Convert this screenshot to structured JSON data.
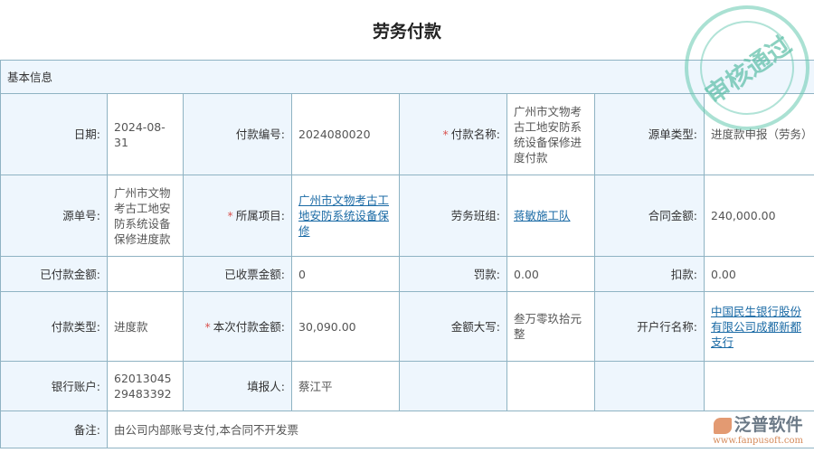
{
  "title": "劳务付款",
  "section": "基本信息",
  "stamp": "审核通过",
  "logo": {
    "name": "泛普软件",
    "url": "www.fanpusoft.com"
  },
  "fields": {
    "date": {
      "label": "日期:",
      "value": "2024-08-31"
    },
    "pay_no": {
      "label": "付款编号:",
      "value": "2024080020"
    },
    "pay_name": {
      "label": "付款名称:",
      "value": "广州市文物考古工地安防系统设备保修进度付款"
    },
    "src_type": {
      "label": "源单类型:",
      "value": "进度款申报（劳务）"
    },
    "src_no": {
      "label": "源单号:",
      "value": "广州市文物考古工地安防系统设备保修进度款"
    },
    "project": {
      "label": "所属项目:",
      "value": "广州市文物考古工地安防系统设备保修"
    },
    "team": {
      "label": "劳务班组:",
      "value": "蒋敏施工队"
    },
    "contract_amt": {
      "label": "合同金额:",
      "value": "240,000.00"
    },
    "paid_amt": {
      "label": "已付款金额:",
      "value": ""
    },
    "invoiced_amt": {
      "label": "已收票金额:",
      "value": "0"
    },
    "penalty": {
      "label": "罚款:",
      "value": "0.00"
    },
    "deduction": {
      "label": "扣款:",
      "value": "0.00"
    },
    "pay_type": {
      "label": "付款类型:",
      "value": "进度款"
    },
    "this_amt": {
      "label": "本次付款金额:",
      "value": "30,090.00"
    },
    "amt_upper": {
      "label": "金额大写:",
      "value": "叁万零玖拾元整"
    },
    "bank": {
      "label": "开户行名称:",
      "value": "中国民生银行股份有限公司成都新都支行"
    },
    "account": {
      "label": "银行账户:",
      "value": "6201304529483392"
    },
    "filler": {
      "label": "填报人:",
      "value": "蔡江平"
    },
    "remark": {
      "label": "备注:",
      "value": "由公司内部账号支付,本合同不开发票"
    }
  }
}
